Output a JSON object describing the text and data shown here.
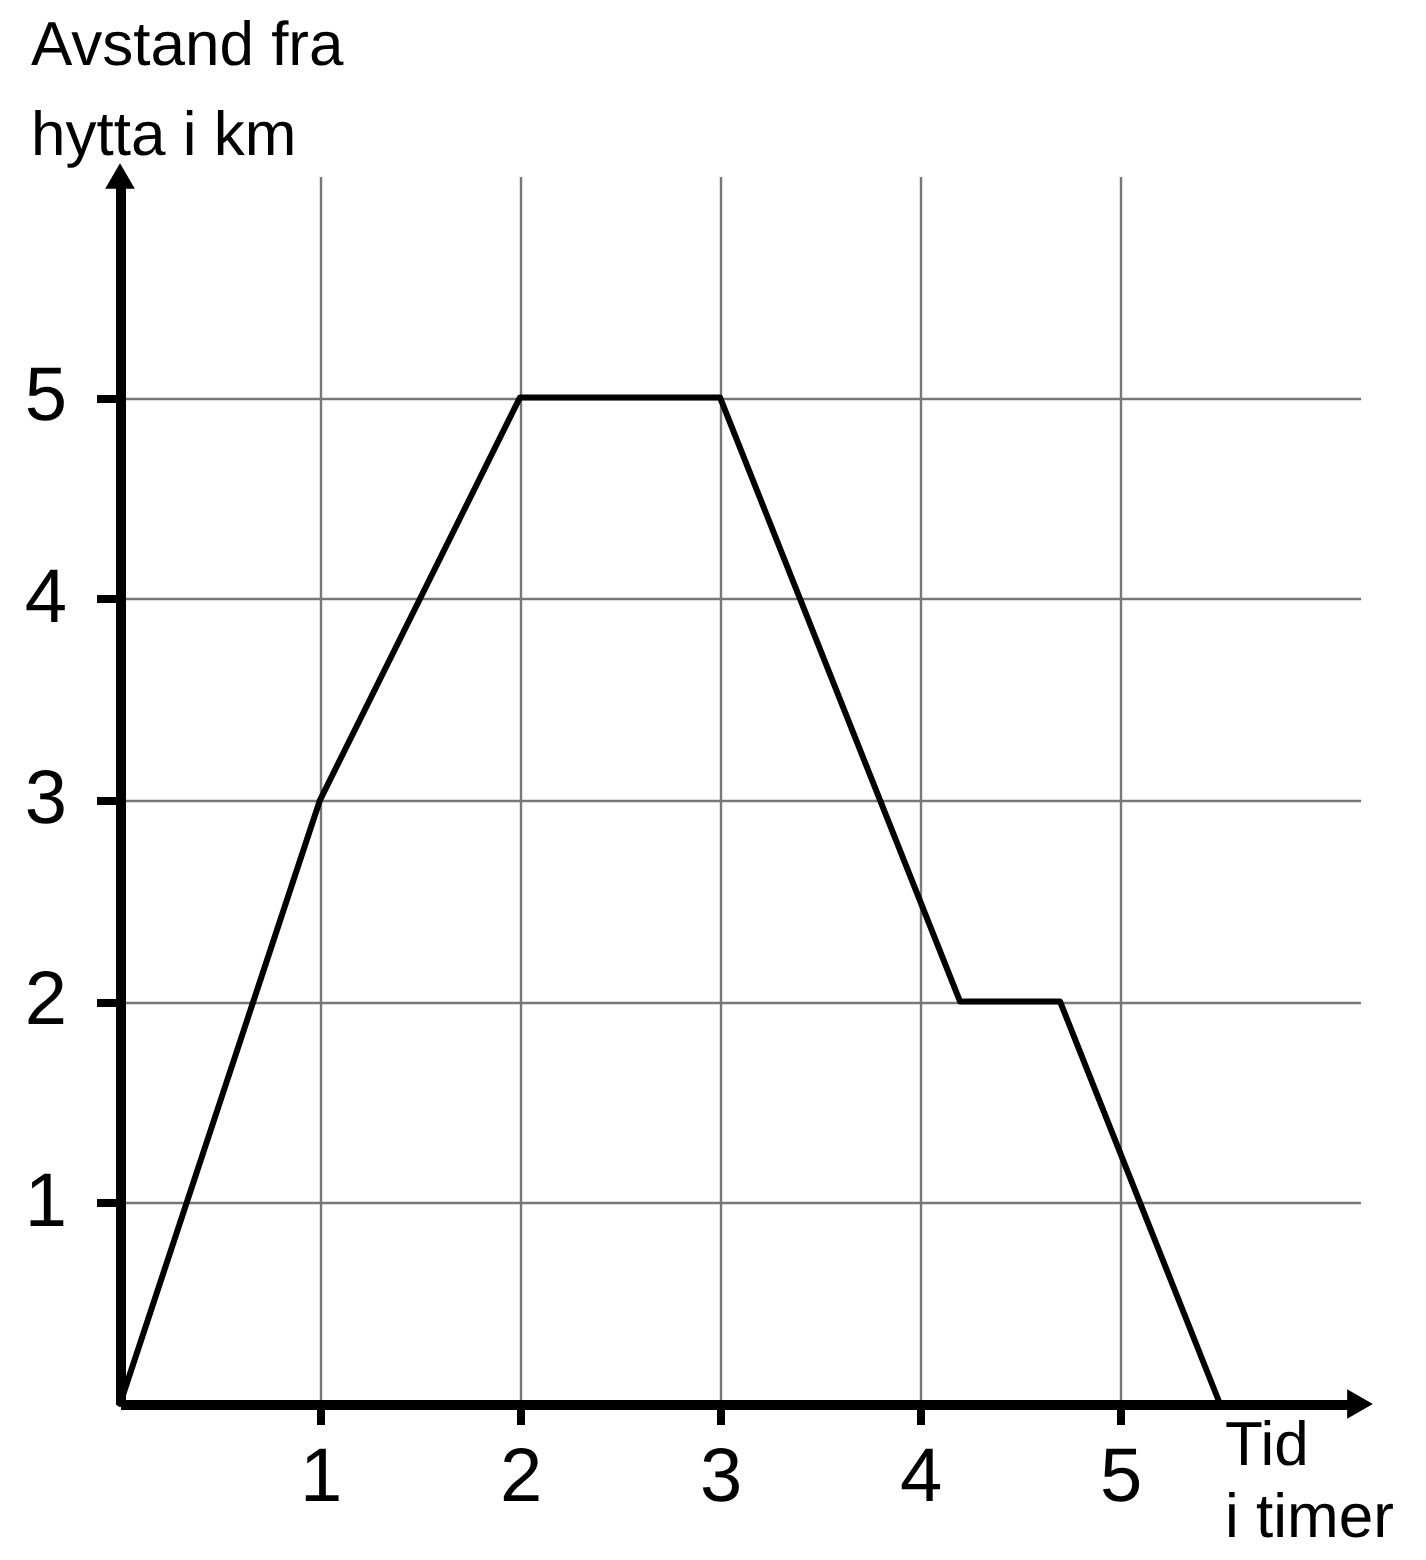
{
  "chart_data": {
    "type": "line",
    "xlabel": "Tid\ni timer",
    "ylabel": "Avstand fra\nhytta i km",
    "x": [
      0,
      1,
      2,
      3,
      4.2,
      4.7,
      5.5
    ],
    "series": [
      {
        "color": "#000000",
        "values": [
          0,
          3,
          5,
          5,
          2,
          2,
          0
        ]
      }
    ],
    "xlim": [
      0,
      6.2
    ],
    "ylim": [
      0,
      6.1
    ],
    "xticks": [
      1,
      2,
      3,
      4,
      5
    ],
    "yticks": [
      1,
      2,
      3,
      4,
      5
    ],
    "grid": true
  }
}
